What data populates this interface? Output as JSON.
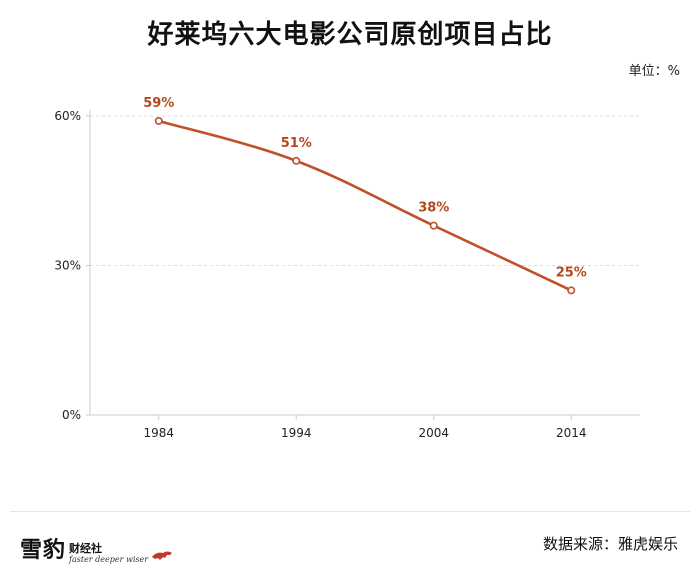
{
  "title": "好莱坞六大电影公司原创项目占比",
  "unit_label": "单位：%",
  "source_label": "数据来源：雅虎娱乐",
  "logo": {
    "big_text": "雪豹",
    "small_text": "财经社",
    "tagline": "faster deeper wiser"
  },
  "colors": {
    "line": "#c0512a",
    "label": "#b5471b",
    "axis": "#cccccc",
    "grid": "#dddddd"
  },
  "chart_data": {
    "type": "line",
    "title": "好莱坞六大电影公司原创项目占比",
    "x": [
      "1984",
      "1994",
      "2004",
      "2014"
    ],
    "series": [
      {
        "values": [
          59,
          51,
          38,
          25
        ]
      }
    ],
    "data_labels": [
      "59%",
      "51%",
      "38%",
      "25%"
    ],
    "y_ticks": [
      0,
      30,
      60
    ],
    "y_tick_labels": [
      "0%",
      "30%",
      "60%"
    ],
    "ylim": [
      0,
      60
    ],
    "grid": "dashed horizontal at 30 and 60",
    "xlabel": "",
    "ylabel": ""
  }
}
